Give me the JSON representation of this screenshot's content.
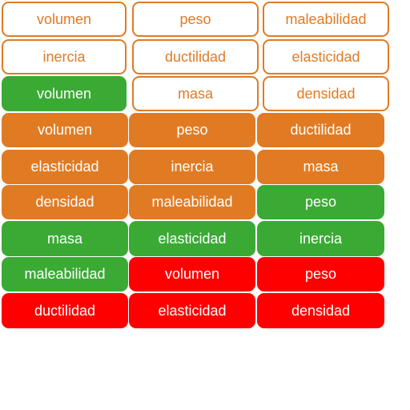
{
  "colors": {
    "orange": "#e07b24",
    "green": "#3aaa35",
    "red": "#ff0000",
    "white": "#ffffff"
  },
  "rows": [
    [
      {
        "word": "volumen",
        "style": "outline"
      },
      {
        "word": "peso",
        "style": "outline"
      },
      {
        "word": "maleabilidad",
        "style": "outline"
      }
    ],
    [
      {
        "word": "inercia",
        "style": "outline"
      },
      {
        "word": "ductilidad",
        "style": "outline"
      },
      {
        "word": "elasticidad",
        "style": "outline"
      }
    ],
    [
      {
        "word": "volumen",
        "style": "green"
      },
      {
        "word": "masa",
        "style": "outline"
      },
      {
        "word": "densidad",
        "style": "outline"
      }
    ],
    [
      {
        "word": "volumen",
        "style": "orange"
      },
      {
        "word": "peso",
        "style": "orange"
      },
      {
        "word": "ductilidad",
        "style": "orange"
      }
    ],
    [
      {
        "word": "elasticidad",
        "style": "orange"
      },
      {
        "word": "inercia",
        "style": "orange"
      },
      {
        "word": "masa",
        "style": "orange"
      }
    ],
    [
      {
        "word": "densidad",
        "style": "orange"
      },
      {
        "word": "maleabilidad",
        "style": "orange"
      },
      {
        "word": "peso",
        "style": "green"
      }
    ],
    [
      {
        "word": "masa",
        "style": "green"
      },
      {
        "word": "elasticidad",
        "style": "green"
      },
      {
        "word": "inercia",
        "style": "green"
      }
    ],
    [
      {
        "word": "maleabilidad",
        "style": "green"
      },
      {
        "word": "volumen",
        "style": "red"
      },
      {
        "word": "peso",
        "style": "red"
      }
    ],
    [
      {
        "word": "ductilidad",
        "style": "red"
      },
      {
        "word": "elasticidad",
        "style": "red"
      },
      {
        "word": "densidad",
        "style": "red"
      }
    ]
  ]
}
